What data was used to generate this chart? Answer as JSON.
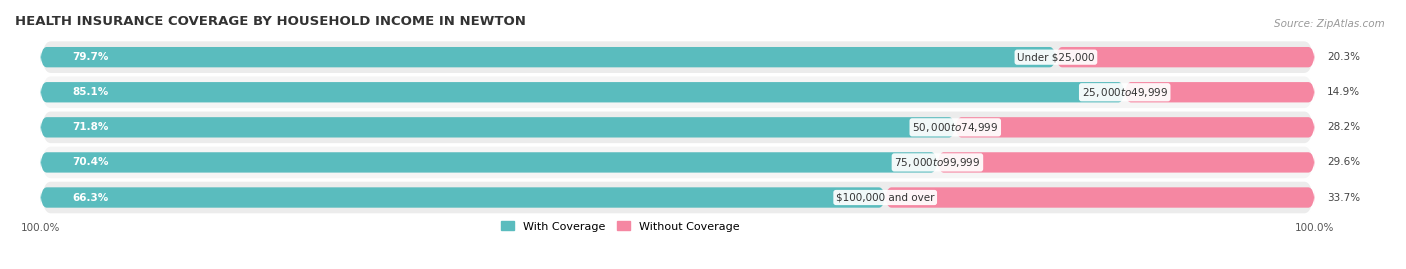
{
  "title": "HEALTH INSURANCE COVERAGE BY HOUSEHOLD INCOME IN NEWTON",
  "source": "Source: ZipAtlas.com",
  "categories": [
    "Under $25,000",
    "$25,000 to $49,999",
    "$50,000 to $74,999",
    "$75,000 to $99,999",
    "$100,000 and over"
  ],
  "with_coverage": [
    79.7,
    85.1,
    71.8,
    70.4,
    66.3
  ],
  "without_coverage": [
    20.3,
    14.9,
    28.2,
    29.6,
    33.7
  ],
  "color_with": "#5abcbe",
  "color_without": "#f587a2",
  "background_row_odd": "#ececec",
  "background_row_even": "#f5f5f5",
  "background_fig": "#ffffff",
  "bar_height": 0.58,
  "title_fontsize": 9.5,
  "source_fontsize": 7.5,
  "label_fontsize": 7.5,
  "tick_fontsize": 7.5,
  "legend_fontsize": 8
}
